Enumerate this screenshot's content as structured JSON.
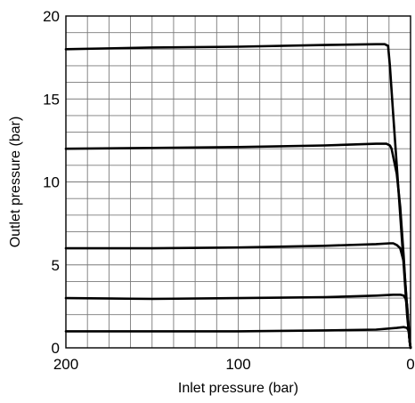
{
  "chart_data": {
    "type": "line",
    "xlabel": "Inlet pressure (bar)",
    "ylabel": "Outlet pressure (bar)",
    "xlim": [
      200,
      0
    ],
    "ylim": [
      0,
      20
    ],
    "x_reversed": true,
    "x_ticks": [
      200,
      100,
      0
    ],
    "y_ticks": [
      0,
      5,
      10,
      15,
      20
    ],
    "x_minor_step": 12.5,
    "y_minor_step": 1,
    "grid": true,
    "series": [
      {
        "x": [
          200,
          150,
          100,
          50,
          20,
          15,
          13,
          12,
          11,
          10,
          8,
          6,
          4,
          2,
          0.5,
          0
        ],
        "y": [
          18.0,
          18.1,
          18.15,
          18.25,
          18.3,
          18.3,
          18.2,
          17.0,
          15.5,
          14.0,
          11.0,
          8.0,
          5.0,
          2.0,
          0.4,
          0
        ]
      },
      {
        "x": [
          200,
          150,
          100,
          50,
          20,
          14,
          12,
          11,
          10,
          8,
          6,
          4,
          2,
          0.5,
          0
        ],
        "y": [
          12.0,
          12.05,
          12.1,
          12.2,
          12.3,
          12.3,
          12.2,
          12.0,
          11.5,
          10.5,
          8.5,
          5.5,
          2.2,
          0.4,
          0
        ]
      },
      {
        "x": [
          200,
          150,
          100,
          50,
          20,
          12,
          10,
          8,
          7,
          6,
          4,
          2,
          0.5,
          0
        ],
        "y": [
          6.0,
          6.0,
          6.05,
          6.15,
          6.25,
          6.3,
          6.3,
          6.2,
          6.1,
          6.0,
          5.2,
          2.5,
          0.4,
          0
        ]
      },
      {
        "x": [
          200,
          150,
          100,
          50,
          20,
          10,
          6,
          4,
          3,
          2,
          0.5,
          0
        ],
        "y": [
          3.0,
          2.95,
          3.0,
          3.05,
          3.15,
          3.2,
          3.2,
          3.15,
          3.0,
          2.6,
          0.4,
          0
        ]
      },
      {
        "x": [
          200,
          150,
          100,
          50,
          20,
          8,
          4,
          2,
          1,
          0.5,
          0
        ],
        "y": [
          1.0,
          1.0,
          1.0,
          1.05,
          1.1,
          1.2,
          1.25,
          1.2,
          1.0,
          0.4,
          0
        ]
      }
    ]
  }
}
